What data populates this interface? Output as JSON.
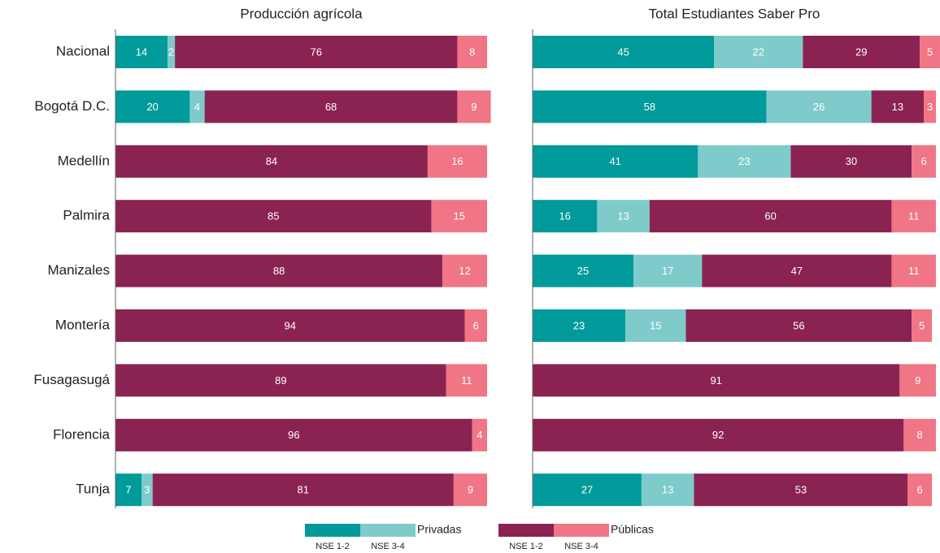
{
  "chart_data": [
    {
      "type": "stacked-bar-horizontal",
      "title": "Producción agrícola",
      "categories": [
        "Nacional",
        "Bogotá D.C.",
        "Medellín",
        "Palmira",
        "Manizales",
        "Montería",
        "Fusagasugá",
        "Florencia",
        "Tunja"
      ],
      "xlim": [
        0,
        100
      ],
      "series": [
        {
          "name": "NSE 1-2",
          "group": "Privadas",
          "color": "#009a9a",
          "values": [
            14,
            20,
            0,
            0,
            0,
            0,
            0,
            0,
            7
          ]
        },
        {
          "name": "NSE 3-4",
          "group": "Privadas",
          "color": "#7fcbcb",
          "values": [
            2,
            4,
            0,
            0,
            0,
            0,
            0,
            0,
            3
          ]
        },
        {
          "name": "NSE 1-2",
          "group": "Públicas",
          "color": "#8a2351",
          "values": [
            76,
            68,
            84,
            85,
            88,
            94,
            89,
            96,
            81
          ]
        },
        {
          "name": "NSE 3-4",
          "group": "Públicas",
          "color": "#f07585",
          "values": [
            8,
            9,
            16,
            15,
            12,
            6,
            11,
            4,
            9
          ]
        }
      ]
    },
    {
      "type": "stacked-bar-horizontal",
      "title": "Total Estudiantes Saber Pro",
      "xlim": [
        0,
        100
      ],
      "series": [
        {
          "name": "NSE 1-2",
          "group": "Privadas",
          "color": "#009a9a",
          "values": [
            45,
            58,
            41,
            16,
            25,
            23,
            0,
            0,
            27
          ]
        },
        {
          "name": "NSE 3-4",
          "group": "Privadas",
          "color": "#7fcbcb",
          "values": [
            22,
            26,
            23,
            13,
            17,
            15,
            0,
            0,
            13
          ]
        },
        {
          "name": "NSE 1-2",
          "group": "Públicas",
          "color": "#8a2351",
          "values": [
            29,
            13,
            30,
            60,
            47,
            56,
            91,
            92,
            53
          ]
        },
        {
          "name": "NSE 3-4",
          "group": "Públicas",
          "color": "#f07585",
          "values": [
            5,
            3,
            6,
            11,
            11,
            5,
            9,
            8,
            6
          ]
        }
      ]
    }
  ]
}
